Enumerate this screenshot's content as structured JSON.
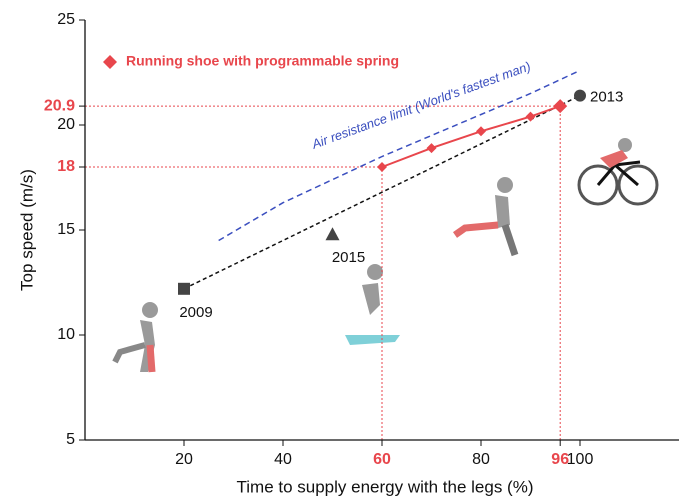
{
  "chart_data": {
    "type": "line",
    "x_label": "Time to supply energy with the legs  (%)",
    "y_label": "Top speed (m/s)",
    "xlim": [
      0,
      120
    ],
    "ylim": [
      5,
      25
    ],
    "xticks": [
      20,
      40,
      80,
      100
    ],
    "yticks": [
      5,
      10,
      15,
      20,
      25
    ],
    "highlight_xticks": [
      60,
      96
    ],
    "highlight_yticks": [
      18,
      20.9
    ],
    "highlight_color": "#e8464c",
    "series": [
      {
        "name": "Running shoe with programmable spring",
        "color": "#e8464c",
        "x": [
          60,
          70,
          80,
          90,
          96
        ],
        "values": [
          18,
          18.9,
          19.7,
          20.4,
          20.9
        ]
      }
    ],
    "points": [
      {
        "label": "2009",
        "x": 20,
        "y": 12.2,
        "shape": "square"
      },
      {
        "label": "2015",
        "x": 50,
        "y": 14.8,
        "shape": "triangle"
      },
      {
        "label": "2013",
        "x": 100,
        "y": 21.4,
        "shape": "circle"
      }
    ],
    "trend": {
      "color": "#111111",
      "x": [
        20,
        100
      ],
      "y": [
        12.2,
        21.4
      ]
    },
    "limit_curve": {
      "label": "Air resistance limit (World's fastest man)",
      "color": "#3b4fbf",
      "x": [
        27,
        40,
        50,
        60,
        70,
        80,
        90,
        100
      ],
      "y": [
        14.5,
        16.3,
        17.4,
        18.5,
        19.5,
        20.5,
        21.5,
        22.6
      ]
    }
  }
}
